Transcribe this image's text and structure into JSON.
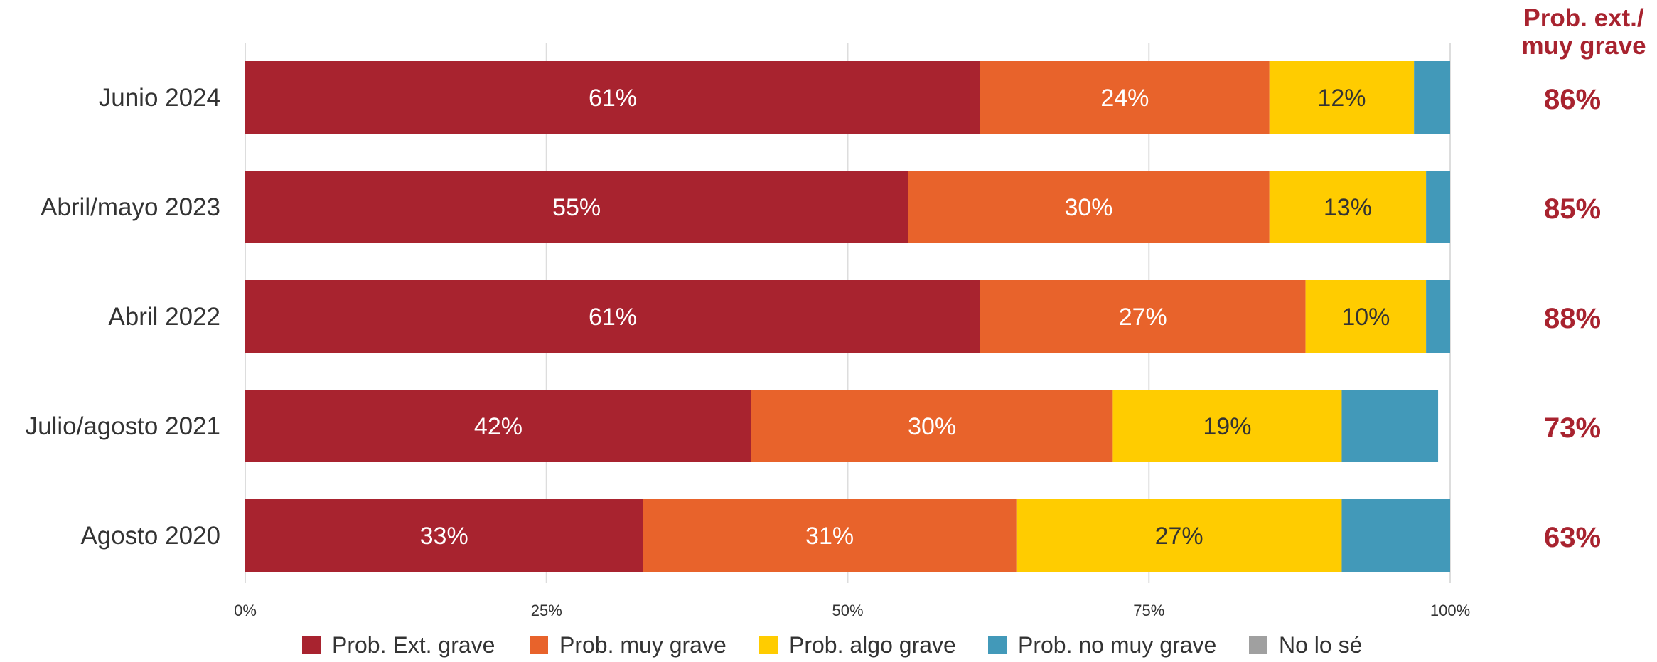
{
  "chart_data": {
    "type": "bar",
    "orientation": "horizontal",
    "stacked": true,
    "categories": [
      "Junio 2024",
      "Abril/mayo 2023",
      "Abril 2022",
      "Julio/agosto 2021",
      "Agosto 2020"
    ],
    "series": [
      {
        "name": "Prob. Ext. grave",
        "color": "#A8232F",
        "label_color": "#ffffff",
        "values": [
          61,
          55,
          61,
          42,
          33
        ],
        "labels": [
          "61%",
          "55%",
          "61%",
          "42%",
          "33%"
        ]
      },
      {
        "name": "Prob. muy grave",
        "color": "#E8632B",
        "label_color": "#ffffff",
        "values": [
          24,
          30,
          27,
          30,
          31
        ],
        "labels": [
          "24%",
          "30%",
          "27%",
          "30%",
          "31%"
        ]
      },
      {
        "name": "Prob. algo grave",
        "color": "#FFCC00",
        "label_color": "#333333",
        "values": [
          12,
          13,
          10,
          19,
          27
        ],
        "labels": [
          "12%",
          "13%",
          "10%",
          "19%",
          "27%"
        ]
      },
      {
        "name": "Prob. no muy grave",
        "color": "#4299B9",
        "label_color": "#ffffff",
        "values": [
          3,
          2,
          2,
          8,
          9
        ],
        "labels": [
          "",
          "",
          "",
          "",
          ""
        ]
      },
      {
        "name": "No lo sé",
        "color": "#A0A0A0",
        "label_color": "#ffffff",
        "values": [
          0,
          0,
          0,
          0,
          1
        ],
        "labels": [
          "",
          "",
          "",
          "",
          ""
        ]
      }
    ],
    "xlim": [
      0,
      100
    ],
    "x_ticks": [
      0,
      25,
      50,
      75,
      100
    ],
    "x_tick_labels": [
      "0%",
      "25%",
      "50%",
      "75%",
      "100%"
    ],
    "grid": true,
    "legend_position": "bottom",
    "totals": {
      "title_lines": [
        "Prob. ext./",
        "muy grave"
      ],
      "labels": [
        "86%",
        "85%",
        "88%",
        "73%",
        "63%"
      ]
    }
  }
}
